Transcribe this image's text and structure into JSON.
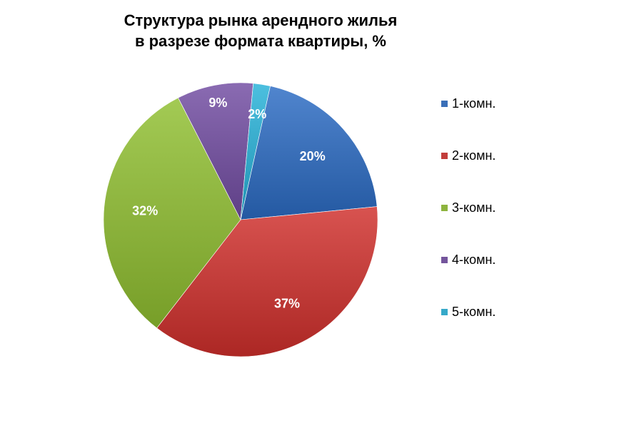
{
  "chart_data": {
    "type": "pie",
    "title_lines": [
      "Структура рынка арендного жилья",
      "в разрезе формата квартиры, %"
    ],
    "categories": [
      "1-комн.",
      "2-комн.",
      "3-комн.",
      "4-комн.",
      "5-комн."
    ],
    "values": [
      20,
      37,
      32,
      9,
      2
    ],
    "data_labels": [
      "20%",
      "37%",
      "32%",
      "9%",
      "2%"
    ],
    "colors": [
      "#3a6fb8",
      "#c23d3a",
      "#8db43e",
      "#74559c",
      "#36a9c9"
    ],
    "legend_position": "right"
  }
}
